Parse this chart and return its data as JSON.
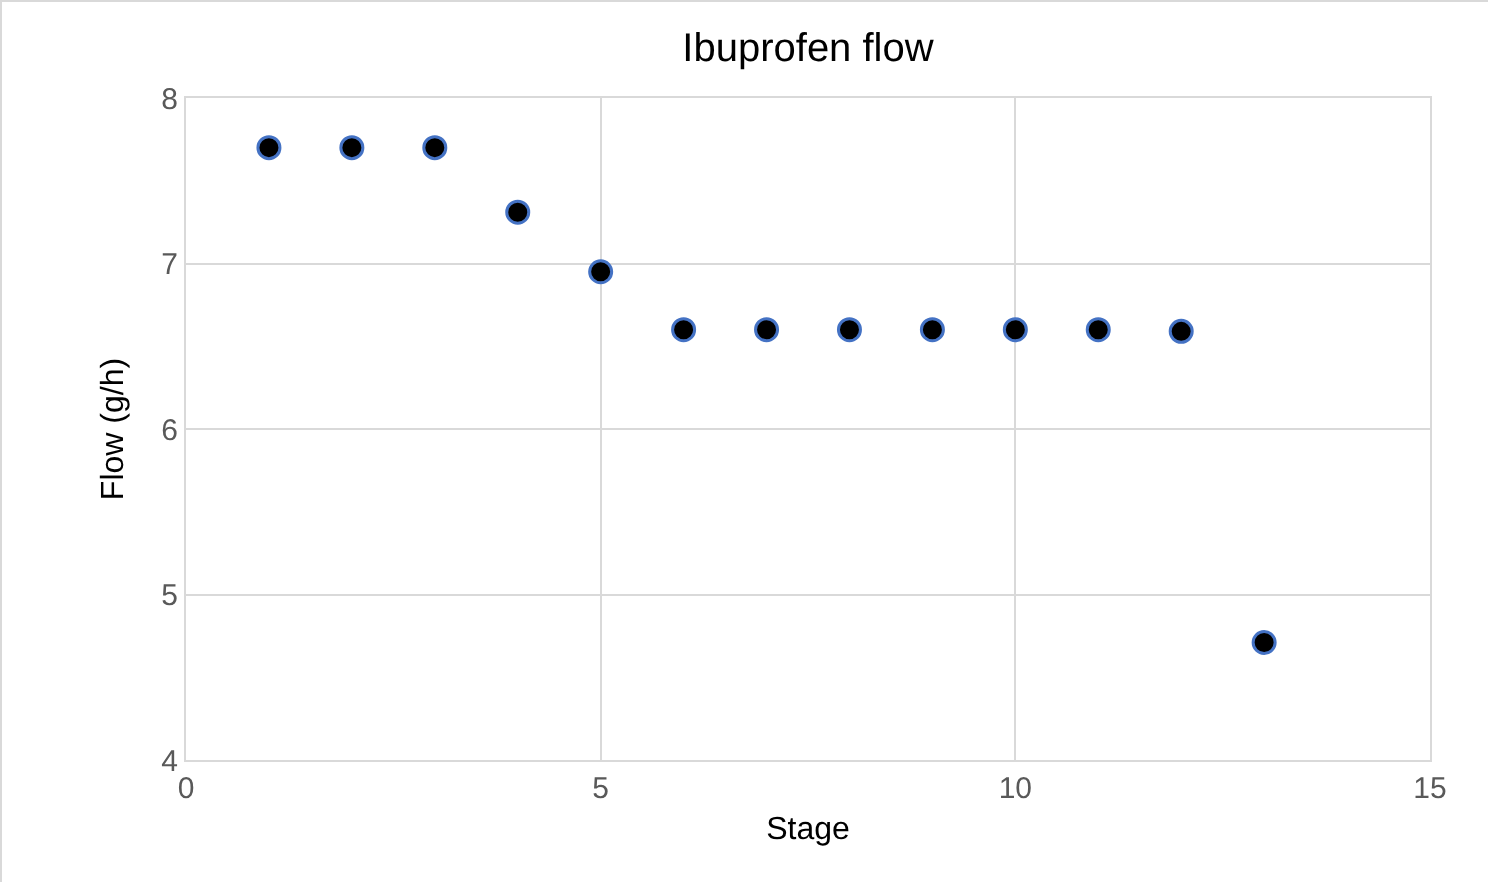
{
  "chart_data": {
    "type": "scatter",
    "title": "Ibuprofen flow",
    "xlabel": "Stage",
    "ylabel": "Flow (g/h)",
    "x": [
      1,
      2,
      3,
      4,
      5,
      6,
      7,
      8,
      9,
      10,
      11,
      12,
      13
    ],
    "series": [
      {
        "color": "#000000",
        "values": [
          7.7,
          7.7,
          7.7,
          7.31,
          6.95,
          6.6,
          6.6,
          6.6,
          6.6,
          6.6,
          6.6,
          6.59,
          4.71
        ]
      }
    ],
    "xlim": [
      0,
      15
    ],
    "xticks": [
      0,
      5,
      10,
      15
    ],
    "ylim": [
      4,
      8
    ],
    "yticks": [
      4,
      5,
      6,
      7,
      8
    ],
    "grid": true,
    "marker": "circle"
  }
}
